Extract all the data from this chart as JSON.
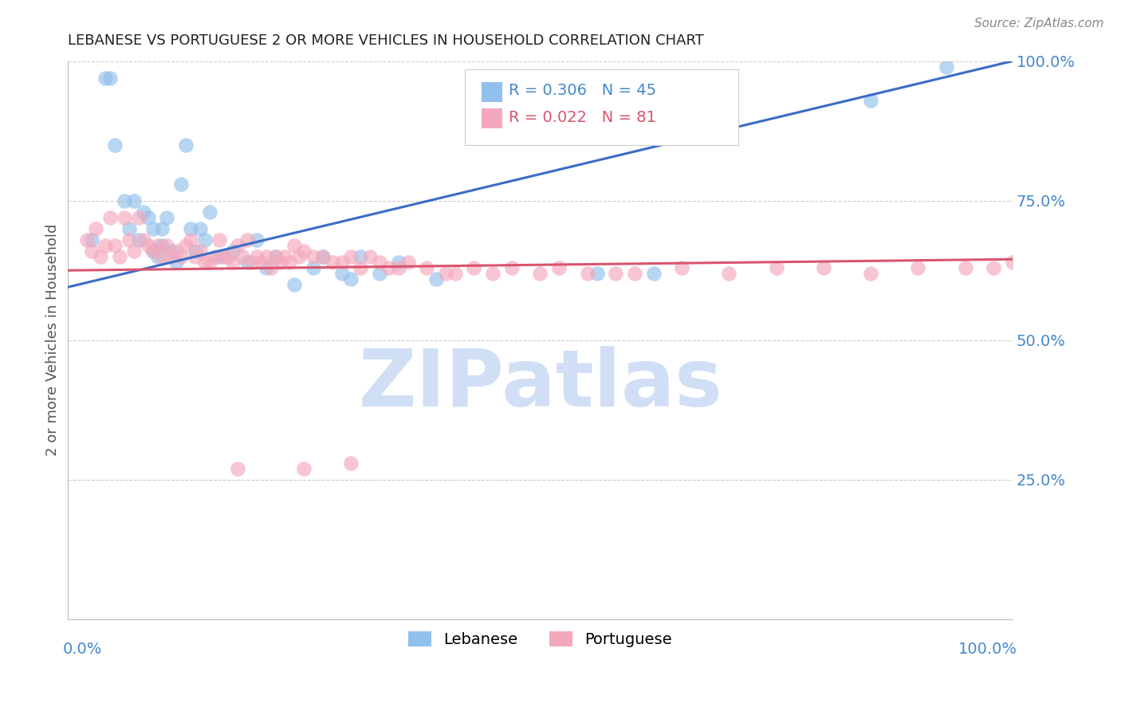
{
  "title": "LEBANESE VS PORTUGUESE 2 OR MORE VEHICLES IN HOUSEHOLD CORRELATION CHART",
  "source": "Source: ZipAtlas.com",
  "ylabel": "2 or more Vehicles in Household",
  "xlim": [
    0.0,
    1.0
  ],
  "ylim": [
    0.0,
    1.0
  ],
  "blue_color": "#92C0EC",
  "pink_color": "#F4A8BB",
  "blue_line_color": "#3B6CC7",
  "pink_line_color": "#D9546E",
  "watermark_color": "#D0DFF5",
  "background_color": "#FFFFFF",
  "grid_color": "#CCCCCC",
  "title_color": "#222222",
  "right_tick_color": "#4488CC",
  "blue_scatter_x": [
    0.025,
    0.04,
    0.045,
    0.05,
    0.06,
    0.065,
    0.07,
    0.075,
    0.08,
    0.085,
    0.09,
    0.09,
    0.095,
    0.1,
    0.1,
    0.105,
    0.11,
    0.115,
    0.12,
    0.125,
    0.13,
    0.135,
    0.14,
    0.145,
    0.15,
    0.16,
    0.175,
    0.19,
    0.2,
    0.21,
    0.22,
    0.24,
    0.26,
    0.27,
    0.29,
    0.3,
    0.31,
    0.33,
    0.35,
    0.39,
    0.56,
    0.62,
    0.68,
    0.85,
    0.93
  ],
  "blue_scatter_y": [
    0.68,
    0.97,
    0.97,
    0.85,
    0.75,
    0.7,
    0.75,
    0.68,
    0.73,
    0.72,
    0.7,
    0.66,
    0.65,
    0.7,
    0.67,
    0.72,
    0.66,
    0.64,
    0.78,
    0.85,
    0.7,
    0.66,
    0.7,
    0.68,
    0.73,
    0.65,
    0.66,
    0.64,
    0.68,
    0.63,
    0.65,
    0.6,
    0.63,
    0.65,
    0.62,
    0.61,
    0.65,
    0.62,
    0.64,
    0.61,
    0.62,
    0.62,
    0.9,
    0.93,
    0.99
  ],
  "pink_scatter_x": [
    0.02,
    0.025,
    0.03,
    0.035,
    0.04,
    0.045,
    0.05,
    0.055,
    0.06,
    0.065,
    0.07,
    0.075,
    0.08,
    0.085,
    0.09,
    0.095,
    0.1,
    0.105,
    0.11,
    0.115,
    0.12,
    0.125,
    0.13,
    0.135,
    0.14,
    0.145,
    0.15,
    0.155,
    0.16,
    0.165,
    0.17,
    0.175,
    0.18,
    0.185,
    0.19,
    0.195,
    0.2,
    0.205,
    0.21,
    0.215,
    0.22,
    0.225,
    0.23,
    0.235,
    0.24,
    0.245,
    0.25,
    0.26,
    0.27,
    0.28,
    0.29,
    0.3,
    0.31,
    0.32,
    0.33,
    0.34,
    0.35,
    0.36,
    0.38,
    0.4,
    0.41,
    0.43,
    0.45,
    0.47,
    0.5,
    0.52,
    0.55,
    0.58,
    0.6,
    0.65,
    0.7,
    0.75,
    0.8,
    0.85,
    0.9,
    0.95,
    0.98,
    1.0,
    0.18,
    0.25,
    0.3
  ],
  "pink_scatter_y": [
    0.68,
    0.66,
    0.7,
    0.65,
    0.67,
    0.72,
    0.67,
    0.65,
    0.72,
    0.68,
    0.66,
    0.72,
    0.68,
    0.67,
    0.66,
    0.67,
    0.65,
    0.67,
    0.65,
    0.66,
    0.65,
    0.67,
    0.68,
    0.65,
    0.66,
    0.64,
    0.64,
    0.65,
    0.68,
    0.65,
    0.65,
    0.64,
    0.67,
    0.65,
    0.68,
    0.64,
    0.65,
    0.64,
    0.65,
    0.63,
    0.65,
    0.64,
    0.65,
    0.64,
    0.67,
    0.65,
    0.66,
    0.65,
    0.65,
    0.64,
    0.64,
    0.65,
    0.63,
    0.65,
    0.64,
    0.63,
    0.63,
    0.64,
    0.63,
    0.62,
    0.62,
    0.63,
    0.62,
    0.63,
    0.62,
    0.63,
    0.62,
    0.62,
    0.62,
    0.63,
    0.62,
    0.63,
    0.63,
    0.62,
    0.63,
    0.63,
    0.63,
    0.64,
    0.27,
    0.27,
    0.28
  ],
  "blue_line_x0": 0.0,
  "blue_line_x1": 1.0,
  "blue_line_y0": 0.595,
  "blue_line_y1": 1.0,
  "pink_line_x0": 0.0,
  "pink_line_x1": 1.0,
  "pink_line_y0": 0.625,
  "pink_line_y1": 0.645
}
